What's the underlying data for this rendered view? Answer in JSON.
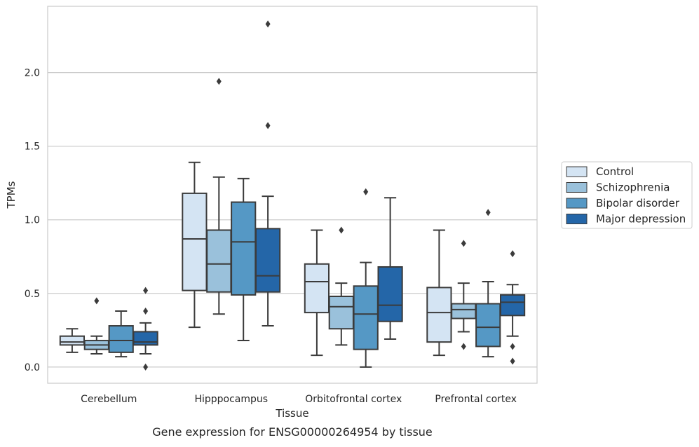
{
  "chart_data": {
    "type": "boxplot",
    "title": "",
    "caption": "Gene expression for ENSG00000264954 by tissue",
    "xlabel": "Tissue",
    "ylabel": "TPMs",
    "ylim": [
      -0.11,
      2.45
    ],
    "yticks": [
      0.0,
      0.5,
      1.0,
      1.5,
      2.0
    ],
    "yticklabels": [
      "0.0",
      "0.5",
      "1.0",
      "1.5",
      "2.0"
    ],
    "grid": "horizontal",
    "legend_position": "right",
    "categories": [
      "Cerebellum",
      "Hipppocampus",
      "Orbitofrontal cortex",
      "Prefrontal cortex"
    ],
    "series": [
      {
        "name": "Control",
        "color": "#d4e4f3",
        "boxes": [
          {
            "whislo": 0.1,
            "q1": 0.15,
            "med": 0.17,
            "q3": 0.21,
            "whishi": 0.26,
            "fliers": []
          },
          {
            "whislo": 0.27,
            "q1": 0.52,
            "med": 0.87,
            "q3": 1.18,
            "whishi": 1.39,
            "fliers": []
          },
          {
            "whislo": 0.08,
            "q1": 0.37,
            "med": 0.58,
            "q3": 0.7,
            "whishi": 0.93,
            "fliers": []
          },
          {
            "whislo": 0.08,
            "q1": 0.17,
            "med": 0.37,
            "q3": 0.54,
            "whishi": 0.93,
            "fliers": []
          }
        ]
      },
      {
        "name": "Schizophrenia",
        "color": "#9ac1db",
        "boxes": [
          {
            "whislo": 0.09,
            "q1": 0.12,
            "med": 0.15,
            "q3": 0.18,
            "whishi": 0.21,
            "fliers": [
              0.45
            ]
          },
          {
            "whislo": 0.36,
            "q1": 0.51,
            "med": 0.7,
            "q3": 0.93,
            "whishi": 1.29,
            "fliers": [
              1.94
            ]
          },
          {
            "whislo": 0.15,
            "q1": 0.26,
            "med": 0.41,
            "q3": 0.48,
            "whishi": 0.57,
            "fliers": [
              0.93
            ]
          },
          {
            "whislo": 0.24,
            "q1": 0.33,
            "med": 0.39,
            "q3": 0.43,
            "whishi": 0.57,
            "fliers": [
              0.84,
              0.14
            ]
          }
        ]
      },
      {
        "name": "Bipolar disorder",
        "color": "#5598c5",
        "boxes": [
          {
            "whislo": 0.07,
            "q1": 0.1,
            "med": 0.18,
            "q3": 0.28,
            "whishi": 0.38,
            "fliers": []
          },
          {
            "whislo": 0.18,
            "q1": 0.49,
            "med": 0.85,
            "q3": 1.12,
            "whishi": 1.28,
            "fliers": []
          },
          {
            "whislo": 0.0,
            "q1": 0.12,
            "med": 0.36,
            "q3": 0.55,
            "whishi": 0.71,
            "fliers": [
              1.19
            ]
          },
          {
            "whislo": 0.07,
            "q1": 0.14,
            "med": 0.27,
            "q3": 0.43,
            "whishi": 0.58,
            "fliers": [
              1.05
            ]
          }
        ]
      },
      {
        "name": "Major depression",
        "color": "#2466a8",
        "boxes": [
          {
            "whislo": 0.09,
            "q1": 0.15,
            "med": 0.17,
            "q3": 0.24,
            "whishi": 0.3,
            "fliers": [
              0.52,
              0.38,
              0.0
            ]
          },
          {
            "whislo": 0.28,
            "q1": 0.51,
            "med": 0.62,
            "q3": 0.94,
            "whishi": 1.16,
            "fliers": [
              2.33,
              1.64
            ]
          },
          {
            "whislo": 0.19,
            "q1": 0.31,
            "med": 0.42,
            "q3": 0.68,
            "whishi": 1.15,
            "fliers": []
          },
          {
            "whislo": 0.21,
            "q1": 0.35,
            "med": 0.44,
            "q3": 0.49,
            "whishi": 0.56,
            "fliers": [
              0.77,
              0.14,
              0.04
            ]
          }
        ]
      }
    ]
  }
}
